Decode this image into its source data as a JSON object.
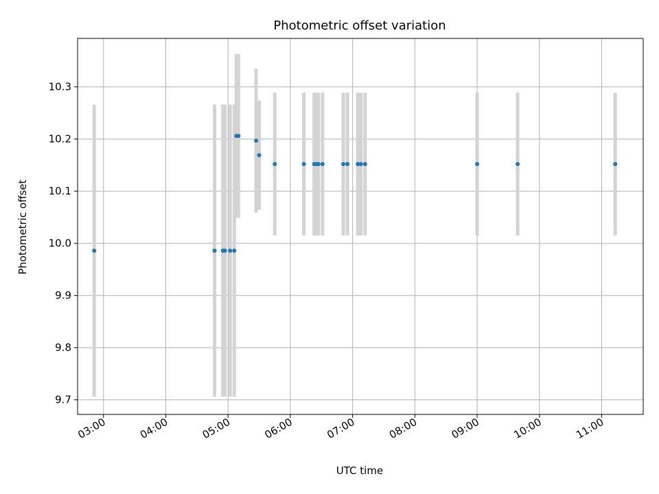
{
  "chart_data": {
    "type": "scatter",
    "title": "Photometric offset variation",
    "xlabel": "UTC time",
    "ylabel": "Photometric offset",
    "x_unit": "UTC time (HH:MM)",
    "xlim": [
      "02:35",
      "11:40"
    ],
    "ylim": [
      9.672,
      10.393
    ],
    "grid": true,
    "x_ticks": [
      "03:00",
      "04:00",
      "05:00",
      "06:00",
      "07:00",
      "08:00",
      "09:00",
      "10:00",
      "11:00"
    ],
    "y_ticks": [
      9.7,
      9.8,
      9.9,
      10.0,
      10.1,
      10.2,
      10.3
    ],
    "y_tick_labels": [
      "9.7",
      "9.8",
      "9.9",
      "10.0",
      "10.1",
      "10.2",
      "10.3"
    ],
    "colors": {
      "point": "#1f77b4",
      "errorbar": "#d3d3d3",
      "grid": "#b0b0b0"
    },
    "points": [
      {
        "x": "02:51",
        "y": 9.986,
        "yerr": 0.28
      },
      {
        "x": "04:47",
        "y": 9.986,
        "yerr": 0.28
      },
      {
        "x": "04:55",
        "y": 9.986,
        "yerr": 0.28
      },
      {
        "x": "04:56",
        "y": 9.986,
        "yerr": 0.28
      },
      {
        "x": "04:57",
        "y": 9.986,
        "yerr": 0.28
      },
      {
        "x": "05:02",
        "y": 9.986,
        "yerr": 0.28
      },
      {
        "x": "05:06",
        "y": 9.986,
        "yerr": 0.28
      },
      {
        "x": "05:08",
        "y": 10.206,
        "yerr": 0.157
      },
      {
        "x": "05:10",
        "y": 10.206,
        "yerr": 0.157
      },
      {
        "x": "05:27",
        "y": 10.197,
        "yerr": 0.138
      },
      {
        "x": "05:30",
        "y": 10.169,
        "yerr": 0.105
      },
      {
        "x": "05:45",
        "y": 10.152,
        "yerr": 0.137
      },
      {
        "x": "06:13",
        "y": 10.152,
        "yerr": 0.137
      },
      {
        "x": "06:23",
        "y": 10.152,
        "yerr": 0.137
      },
      {
        "x": "06:25",
        "y": 10.152,
        "yerr": 0.137
      },
      {
        "x": "06:27",
        "y": 10.152,
        "yerr": 0.137
      },
      {
        "x": "06:31",
        "y": 10.152,
        "yerr": 0.137
      },
      {
        "x": "06:51",
        "y": 10.152,
        "yerr": 0.137
      },
      {
        "x": "06:55",
        "y": 10.152,
        "yerr": 0.137
      },
      {
        "x": "07:05",
        "y": 10.152,
        "yerr": 0.137
      },
      {
        "x": "07:08",
        "y": 10.152,
        "yerr": 0.137
      },
      {
        "x": "07:12",
        "y": 10.152,
        "yerr": 0.137
      },
      {
        "x": "09:00",
        "y": 10.152,
        "yerr": 0.137
      },
      {
        "x": "09:39",
        "y": 10.152,
        "yerr": 0.137
      },
      {
        "x": "11:13",
        "y": 10.152,
        "yerr": 0.137
      }
    ]
  }
}
